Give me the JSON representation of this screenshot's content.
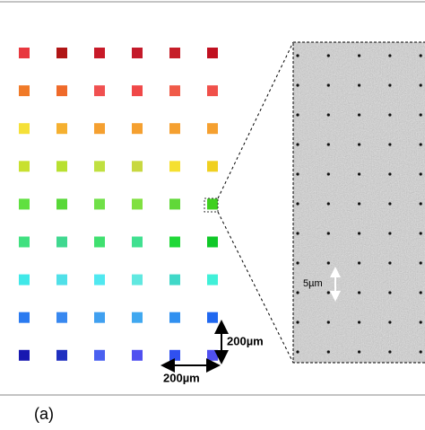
{
  "scale_bar_vertical": "200µm",
  "scale_bar_horizontal": "200µm",
  "inset_scale_bar": "5µm",
  "panel_label": "(a)"
}
